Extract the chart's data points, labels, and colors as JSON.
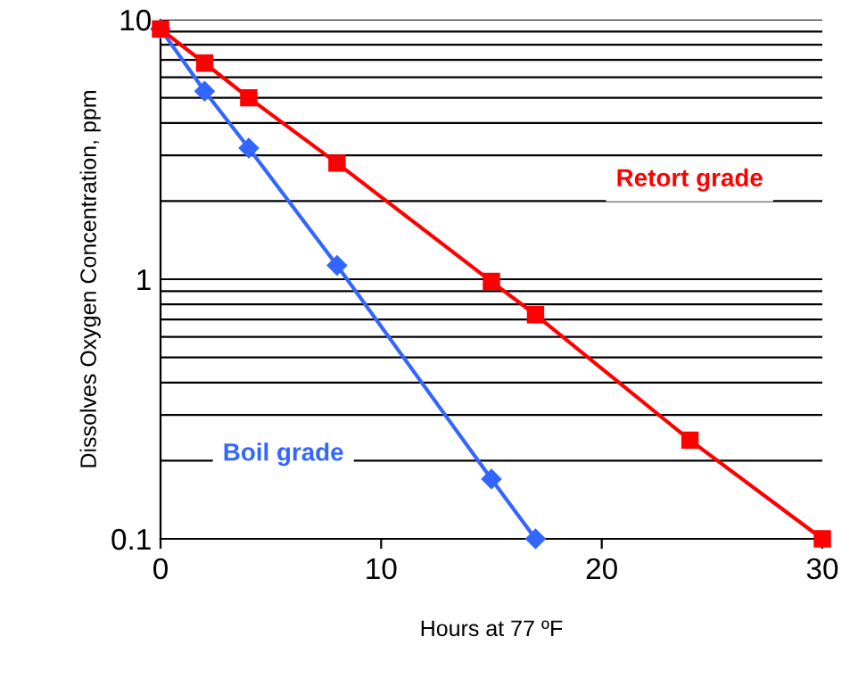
{
  "chart_data": {
    "type": "line",
    "xlabel": "Hours at 77 ºF",
    "ylabel": "Dissolves Oxygen Concentration, ppm",
    "log": "y",
    "grid": "y",
    "legend": false,
    "line_style": "solid",
    "xlim": [
      0,
      30
    ],
    "xticks": [
      0,
      10,
      20,
      30
    ],
    "ylim": [
      0.1,
      10
    ],
    "yticks": [
      0.1,
      {
        "value": 0.2,
        "label": null
      },
      {
        "value": 0.3,
        "label": null
      },
      {
        "value": 0.4,
        "label": null
      },
      {
        "value": 0.5,
        "label": null
      },
      {
        "value": 0.6,
        "label": null
      },
      {
        "value": 0.7,
        "label": null
      },
      {
        "value": 0.8,
        "label": null
      },
      {
        "value": 0.9,
        "label": null
      },
      1,
      {
        "value": 2,
        "label": null
      },
      {
        "value": 3,
        "label": null
      },
      {
        "value": 4,
        "label": null
      },
      {
        "value": 5,
        "label": null
      },
      {
        "value": 6,
        "label": null
      },
      {
        "value": 7,
        "label": null
      },
      {
        "value": 8,
        "label": null
      },
      {
        "value": 9,
        "label": null
      },
      10
    ],
    "series": [
      {
        "name": "Retort grade",
        "color": "#ff0000",
        "marker": "square",
        "x": [
          0,
          2,
          4,
          8,
          15,
          17,
          24,
          30
        ],
        "values": [
          9.2,
          6.8,
          5.0,
          2.8,
          0.98,
          0.73,
          0.24,
          0.1
        ]
      },
      {
        "name": "Boil grade",
        "color": "#3366ff",
        "marker": "diamond",
        "x": [
          0,
          2,
          4,
          8,
          15,
          17
        ],
        "values": [
          9.2,
          5.3,
          3.2,
          1.13,
          0.17,
          0.1
        ]
      }
    ]
  }
}
